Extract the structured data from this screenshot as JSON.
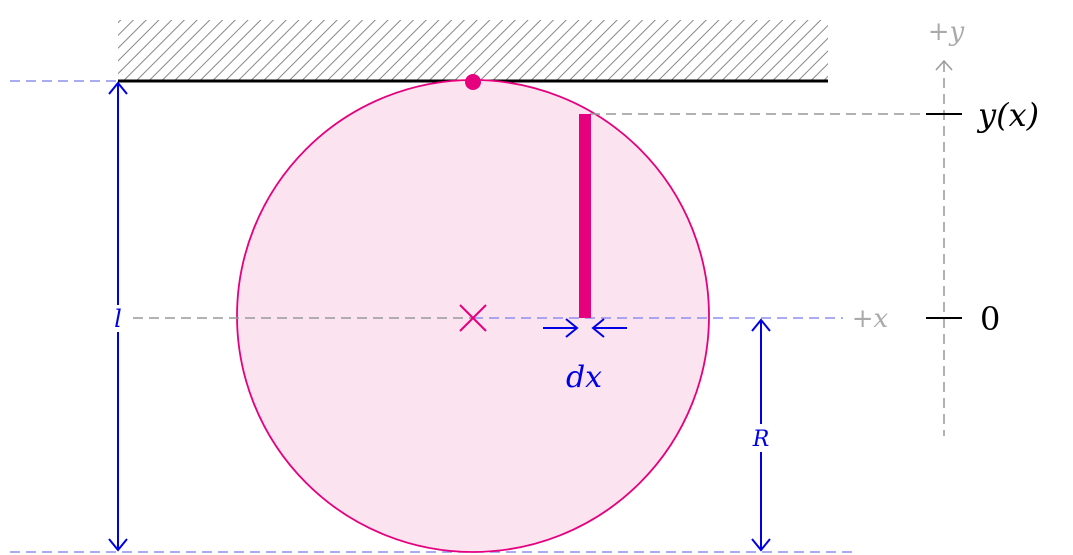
{
  "colors": {
    "magenta": "#e6007e",
    "disk_fill": "#fbe3f0",
    "blue": "#0000e6",
    "light_blue": "#8f8fef",
    "gray": "#999999",
    "hatch": "#888888",
    "black": "#000000"
  },
  "labels": {
    "plus_y": "+y",
    "y_of_x": "y(x)",
    "zero": "0",
    "plus_x": "+x",
    "dx": "dx",
    "length": "l",
    "radius": "R"
  },
  "icons": {
    "center": "cross-mark-icon",
    "pivot": "pivot-dot-icon"
  }
}
